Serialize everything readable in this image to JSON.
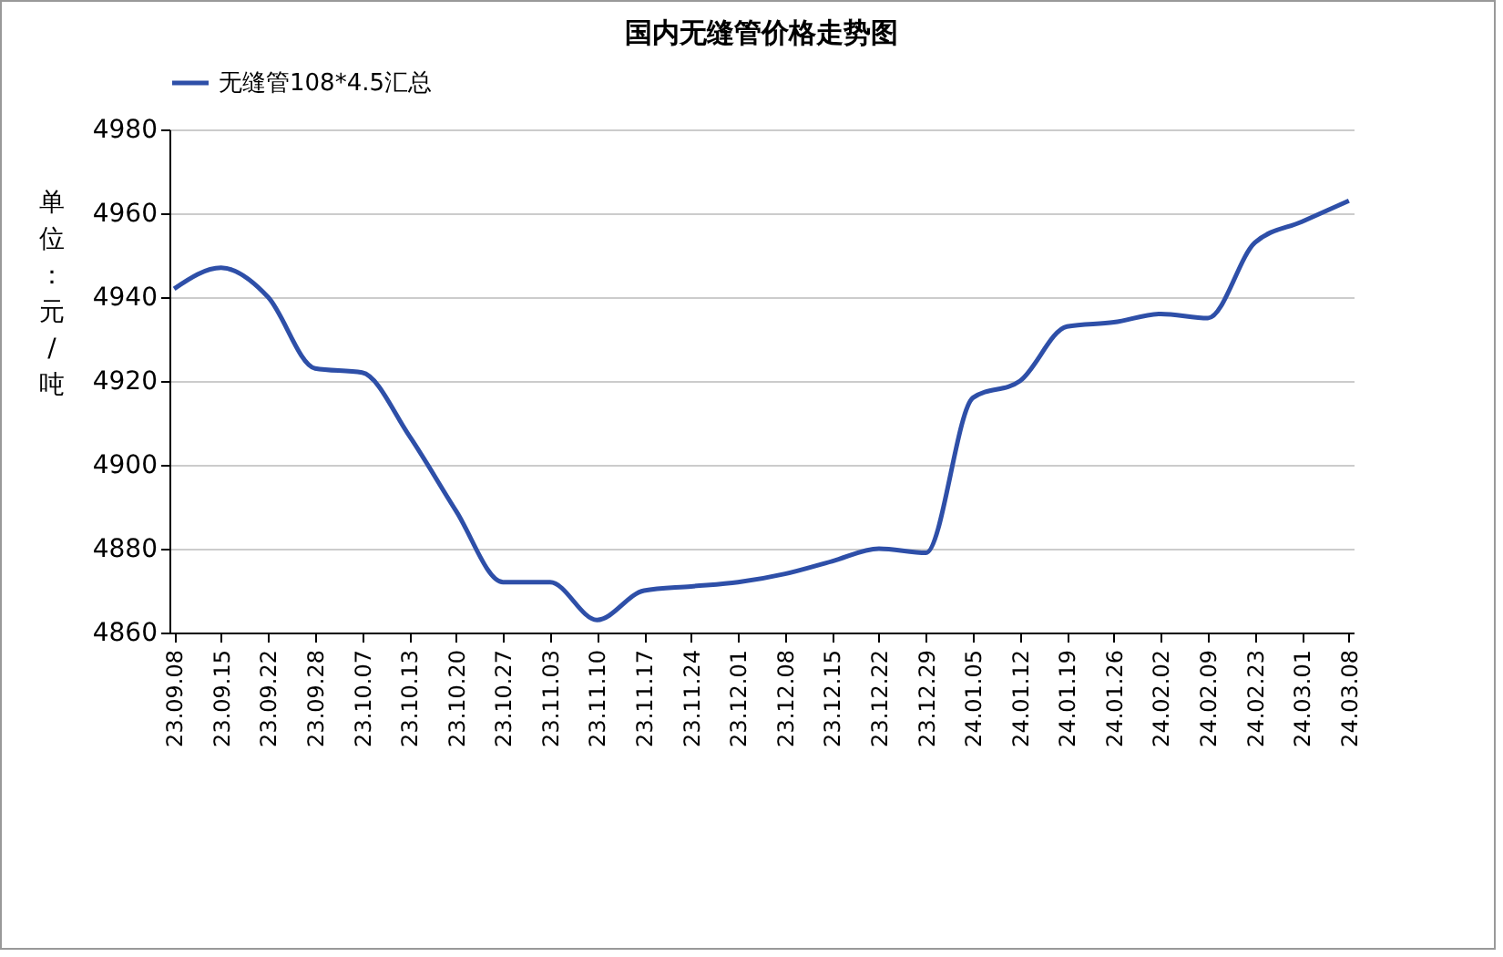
{
  "chart_data": {
    "type": "line",
    "title": "国内无缝管价格走势图",
    "ylabel": "单位：元/吨",
    "categories": [
      "23.09.08",
      "23.09.15",
      "23.09.22",
      "23.09.28",
      "23.10.07",
      "23.10.13",
      "23.10.20",
      "23.10.27",
      "23.11.03",
      "23.11.10",
      "23.11.17",
      "23.11.24",
      "23.12.01",
      "23.12.08",
      "23.12.15",
      "23.12.22",
      "23.12.29",
      "24.01.05",
      "24.01.12",
      "24.01.19",
      "24.01.26",
      "24.02.02",
      "24.02.09",
      "24.02.23",
      "24.03.01",
      "24.03.08"
    ],
    "series": [
      {
        "name": "无缝管108*4.5汇总",
        "color": "#2e4fa8",
        "values": [
          4942,
          4947,
          4940,
          4923,
          4922,
          4907,
          4889,
          4872,
          4872,
          4863,
          4870,
          4871,
          4872,
          4874,
          4877,
          4880,
          4879,
          4916,
          4920,
          4933,
          4934,
          4936,
          4935,
          4953,
          4958,
          4963
        ]
      }
    ],
    "ylim": [
      4860,
      4980
    ],
    "yticks": [
      4860,
      4880,
      4900,
      4920,
      4940,
      4960,
      4980
    ],
    "grid": "y",
    "legend": "top",
    "marker": "none",
    "line_style": "solid"
  }
}
